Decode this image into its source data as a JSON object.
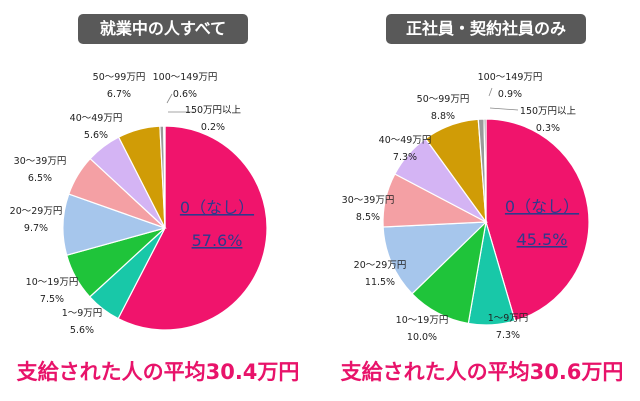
{
  "chart_data": [
    {
      "type": "pie",
      "title": "就業中の人すべて",
      "footer": "支給された人の平均30.4万円",
      "slices": [
        {
          "label": "0（なし）",
          "pct": "57.6%",
          "value": 57.6,
          "color": "#f0146c"
        },
        {
          "label": "1～9万円",
          "pct": "5.6%",
          "value": 5.6,
          "color": "#18c8a8"
        },
        {
          "label": "10～19万円",
          "pct": "7.5%",
          "value": 7.5,
          "color": "#1fc43a"
        },
        {
          "label": "20～29万円",
          "pct": "9.7%",
          "value": 9.7,
          "color": "#a6c6ec"
        },
        {
          "label": "30～39万円",
          "pct": "6.5%",
          "value": 6.5,
          "color": "#f4a0a4"
        },
        {
          "label": "40～49万円",
          "pct": "5.6%",
          "value": 5.6,
          "color": "#d4b4f4"
        },
        {
          "label": "50～99万円",
          "pct": "6.7%",
          "value": 6.7,
          "color": "#d09c06"
        },
        {
          "label": "100～149万円",
          "pct": "0.6%",
          "value": 0.6,
          "color": "#9a9a9a"
        },
        {
          "label": "150万円以上",
          "pct": "0.2%",
          "value": 0.2,
          "color": "#7a7a7a"
        }
      ]
    },
    {
      "type": "pie",
      "title": "正社員・契約社員のみ",
      "footer": "支給された人の平均30.6万円",
      "slices": [
        {
          "label": "0（なし）",
          "pct": "45.5%",
          "value": 45.5,
          "color": "#f0146c"
        },
        {
          "label": "1～9万円",
          "pct": "7.3%",
          "value": 7.3,
          "color": "#18c8a8"
        },
        {
          "label": "10～19万円",
          "pct": "10.0%",
          "value": 10.0,
          "color": "#1fc43a"
        },
        {
          "label": "20～29万円",
          "pct": "11.5%",
          "value": 11.5,
          "color": "#a6c6ec"
        },
        {
          "label": "30～39万円",
          "pct": "8.5%",
          "value": 8.5,
          "color": "#f4a0a4"
        },
        {
          "label": "40～49万円",
          "pct": "7.3%",
          "value": 7.3,
          "color": "#d4b4f4"
        },
        {
          "label": "50～99万円",
          "pct": "8.8%",
          "value": 8.8,
          "color": "#d09c06"
        },
        {
          "label": "100～149万円",
          "pct": "0.9%",
          "value": 0.9,
          "color": "#9a9a9a"
        },
        {
          "label": "150万円以上",
          "pct": "0.3%",
          "value": 0.3,
          "color": "#7a7a7a"
        }
      ]
    }
  ]
}
